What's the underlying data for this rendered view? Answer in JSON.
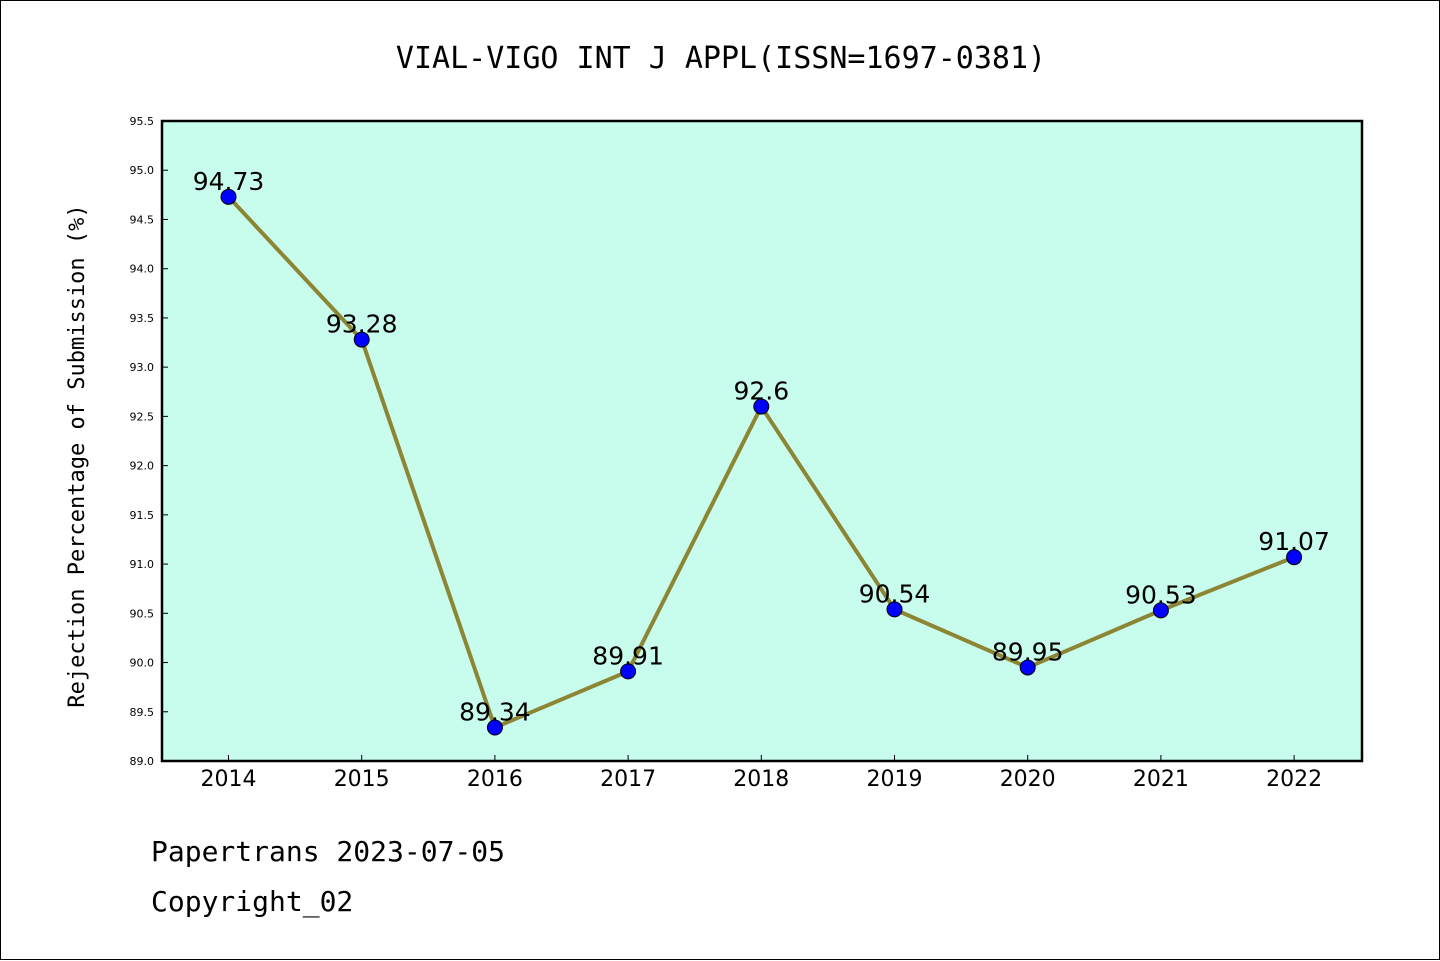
{
  "colors": {
    "plot_background": "#c8fcec",
    "line": "#8c8534",
    "marker": "#0000ff"
  },
  "chart_data": {
    "type": "line",
    "title": "VIAL-VIGO INT J APPL(ISSN=1697-0381)",
    "ylabel": "Rejection Percentage of Submission (%)",
    "xlabel": "",
    "categories": [
      "2014",
      "2015",
      "2016",
      "2017",
      "2018",
      "2019",
      "2020",
      "2021",
      "2022"
    ],
    "series": [
      {
        "values": [
          94.73,
          93.28,
          89.34,
          89.91,
          92.6,
          90.54,
          89.95,
          90.53,
          91.07
        ],
        "data_labels": [
          "94.73",
          "93.28",
          "89.34",
          "89.91",
          "92.6",
          "90.54",
          "89.95",
          "90.53",
          "91.07"
        ]
      }
    ],
    "ylim": [
      89.0,
      95.5
    ],
    "yticks": [
      "89.0",
      "89.5",
      "90.0",
      "90.5",
      "91.0",
      "91.5",
      "92.0",
      "92.5",
      "93.0",
      "93.5",
      "94.0",
      "94.5",
      "95.0",
      "95.5"
    ],
    "grid": false,
    "legend": "none"
  },
  "footer": {
    "line1": "Papertrans 2023-07-05",
    "line2": "Copyright_02"
  }
}
